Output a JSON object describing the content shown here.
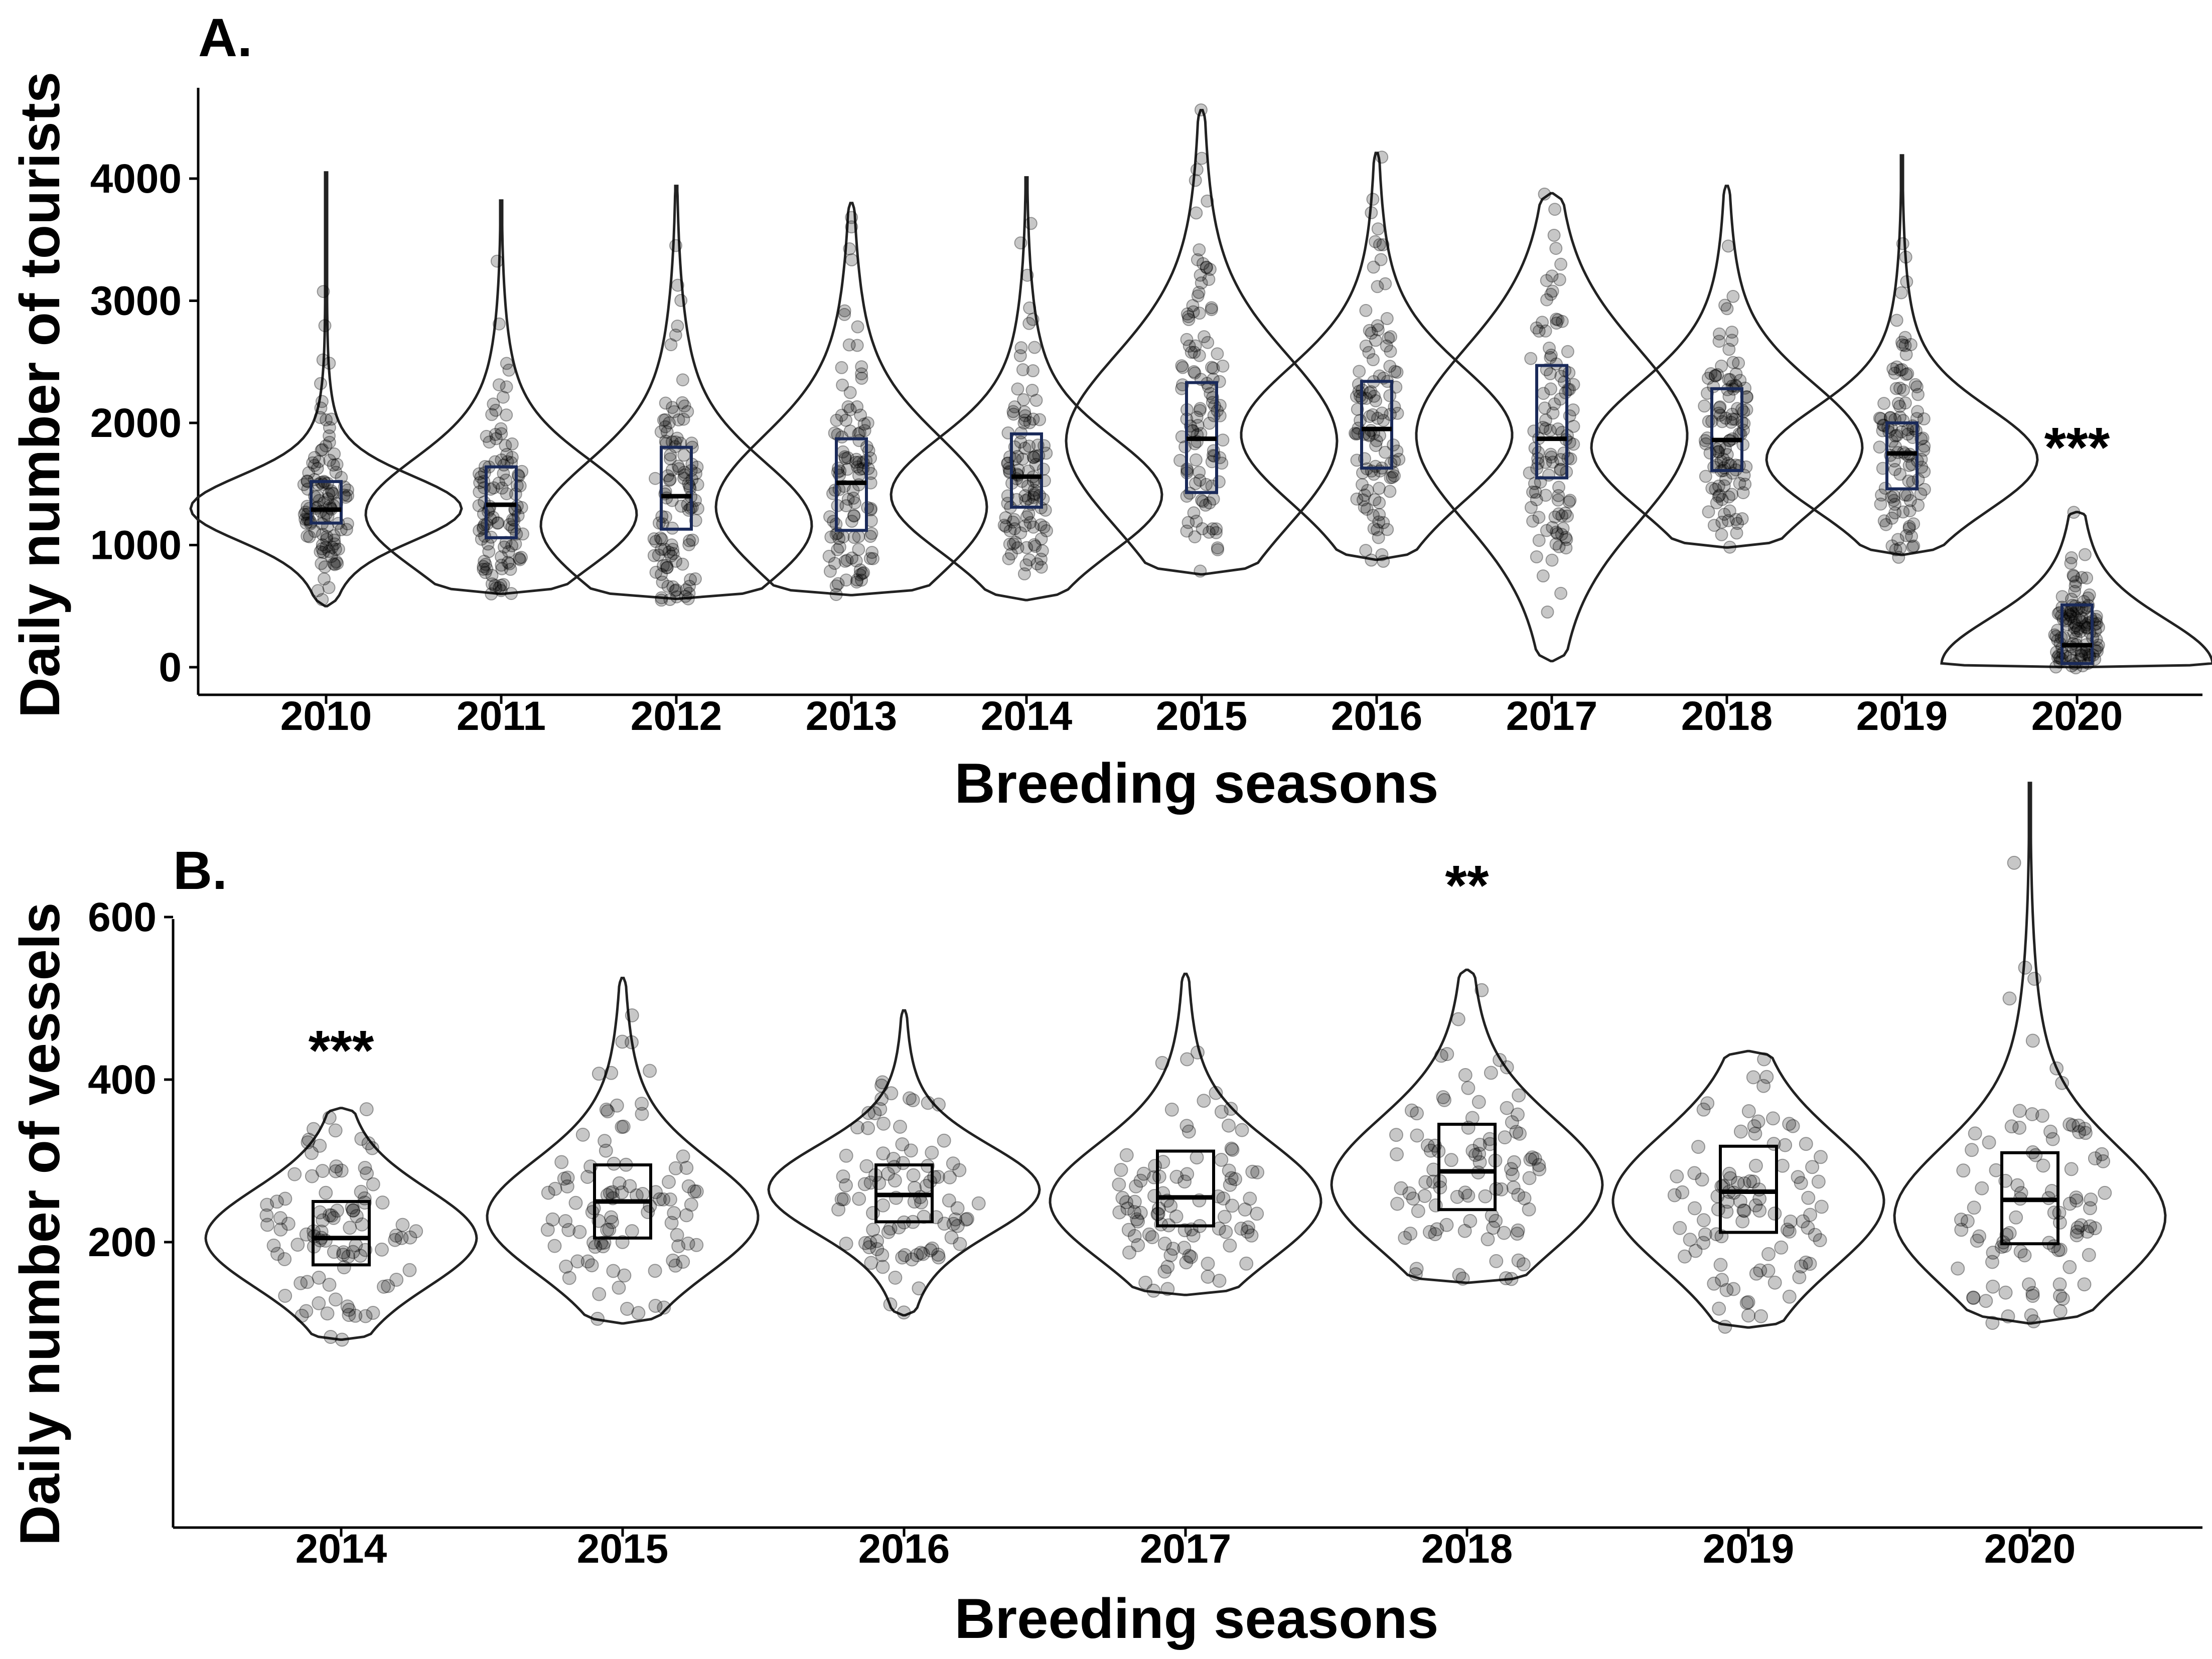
{
  "chart_data": [
    {
      "type": "violin",
      "panel_label": "A.",
      "xlabel": "Breeding seasons",
      "ylabel": "Daily number of tourists",
      "categories": [
        "2010",
        "2011",
        "2012",
        "2013",
        "2014",
        "2015",
        "2016",
        "2017",
        "2018",
        "2019",
        "2020"
      ],
      "yticks": [
        0,
        1000,
        2000,
        3000,
        4000
      ],
      "ytick_labels": [
        "0",
        "1000",
        "2000",
        "3000",
        "4000"
      ],
      "ylim": [
        -200,
        4800
      ],
      "box_color": "#1a2a5a",
      "stats": [
        {
          "year": "2010",
          "min": 500,
          "max": 4050,
          "q1": 1180,
          "median": 1290,
          "q3": 1520,
          "mode": 1300
        },
        {
          "year": "2011",
          "min": 600,
          "max": 3820,
          "q1": 1060,
          "median": 1330,
          "q3": 1640,
          "mode": 1250
        },
        {
          "year": "2012",
          "min": 560,
          "max": 3940,
          "q1": 1130,
          "median": 1400,
          "q3": 1800,
          "mode": 1150
        },
        {
          "year": "2013",
          "min": 590,
          "max": 3800,
          "q1": 1120,
          "median": 1510,
          "q3": 1870,
          "mode": 1300
        },
        {
          "year": "2014",
          "min": 550,
          "max": 4010,
          "q1": 1310,
          "median": 1560,
          "q3": 1910,
          "mode": 1400
        },
        {
          "year": "2015",
          "min": 760,
          "max": 4560,
          "q1": 1430,
          "median": 1870,
          "q3": 2330,
          "mode": 1850
        },
        {
          "year": "2016",
          "min": 880,
          "max": 4210,
          "q1": 1630,
          "median": 1950,
          "q3": 2340,
          "mode": 1900
        },
        {
          "year": "2017",
          "min": 50,
          "max": 3880,
          "q1": 1550,
          "median": 1870,
          "q3": 2470,
          "mode": 1900
        },
        {
          "year": "2018",
          "min": 980,
          "max": 3940,
          "q1": 1610,
          "median": 1860,
          "q3": 2280,
          "mode": 1800
        },
        {
          "year": "2019",
          "min": 920,
          "max": 4190,
          "q1": 1460,
          "median": 1750,
          "q3": 2000,
          "mode": 1700
        },
        {
          "year": "2020",
          "min": 0,
          "max": 1270,
          "q1": 30,
          "median": 180,
          "q3": 510,
          "mode": 20
        }
      ],
      "significance": [
        {
          "year": "2020",
          "label": "***",
          "y": 1640
        }
      ]
    },
    {
      "type": "violin",
      "panel_label": "B.",
      "xlabel": "Breeding seasons",
      "ylabel": "Daily number of vessels",
      "categories": [
        "2014",
        "2015",
        "2016",
        "2017",
        "2018",
        "2019",
        "2020"
      ],
      "yticks": [
        200,
        400,
        600
      ],
      "ytick_labels": [
        "200",
        "400",
        "600"
      ],
      "ylim": [
        50,
        800
      ],
      "box_color": "#000000",
      "stats": [
        {
          "year": "2014",
          "min": 80,
          "max": 365,
          "q1": 172,
          "median": 205,
          "q3": 250,
          "mode": 205
        },
        {
          "year": "2015",
          "min": 100,
          "max": 525,
          "q1": 205,
          "median": 250,
          "q3": 295,
          "mode": 230
        },
        {
          "year": "2016",
          "min": 110,
          "max": 485,
          "q1": 225,
          "median": 258,
          "q3": 295,
          "mode": 265
        },
        {
          "year": "2017",
          "min": 135,
          "max": 530,
          "q1": 220,
          "median": 255,
          "q3": 312,
          "mode": 250
        },
        {
          "year": "2018",
          "min": 150,
          "max": 535,
          "q1": 240,
          "median": 287,
          "q3": 345,
          "mode": 270
        },
        {
          "year": "2019",
          "min": 95,
          "max": 435,
          "q1": 212,
          "median": 262,
          "q3": 318,
          "mode": 250
        },
        {
          "year": "2020",
          "min": 100,
          "max": 765,
          "q1": 198,
          "median": 252,
          "q3": 310,
          "mode": 230
        }
      ],
      "significance": [
        {
          "year": "2014",
          "label": "***",
          "y": 412
        },
        {
          "year": "2018",
          "label": "**",
          "y": 615
        }
      ]
    }
  ]
}
